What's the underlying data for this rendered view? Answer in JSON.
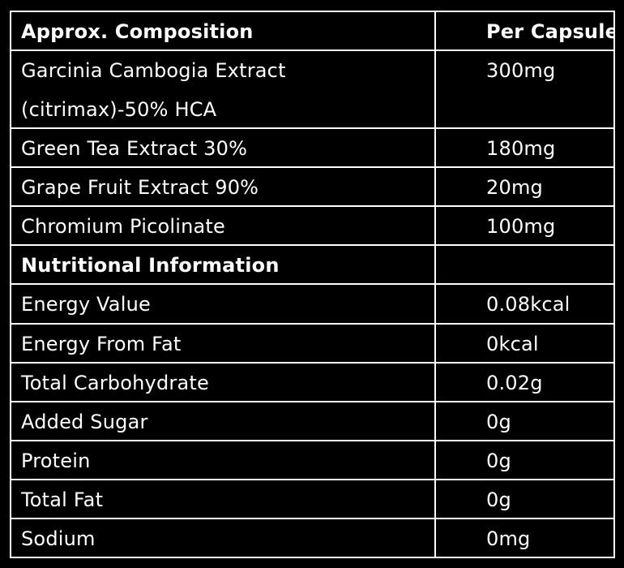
{
  "header": {
    "col1": "Approx. Composition",
    "col2": "Per Capsule"
  },
  "composition": [
    {
      "name": "Garcinia Cambogia Extract (citrimax)-50% HCA",
      "value": "300mg"
    },
    {
      "name": "Green Tea Extract 30%",
      "value": "180mg"
    },
    {
      "name": "Grape Fruit Extract 90%",
      "value": "20mg"
    },
    {
      "name": "Chromium Picolinate",
      "value": "100mg"
    }
  ],
  "nutrition_header": "Nutritional Information",
  "nutrition": [
    {
      "name": "Energy Value",
      "value": "0.08kcal"
    },
    {
      "name": "Energy From Fat",
      "value": "0kcal"
    },
    {
      "name": "Total Carbohydrate",
      "value": "0.02g"
    },
    {
      "name": "Added Sugar",
      "value": "0g"
    },
    {
      "name": "Protein",
      "value": "0g"
    },
    {
      "name": "Total Fat",
      "value": "0g"
    },
    {
      "name": "Sodium",
      "value": "0mg"
    }
  ],
  "colors": {
    "background": "#000000",
    "text": "#ffffff",
    "border": "#ffffff"
  }
}
